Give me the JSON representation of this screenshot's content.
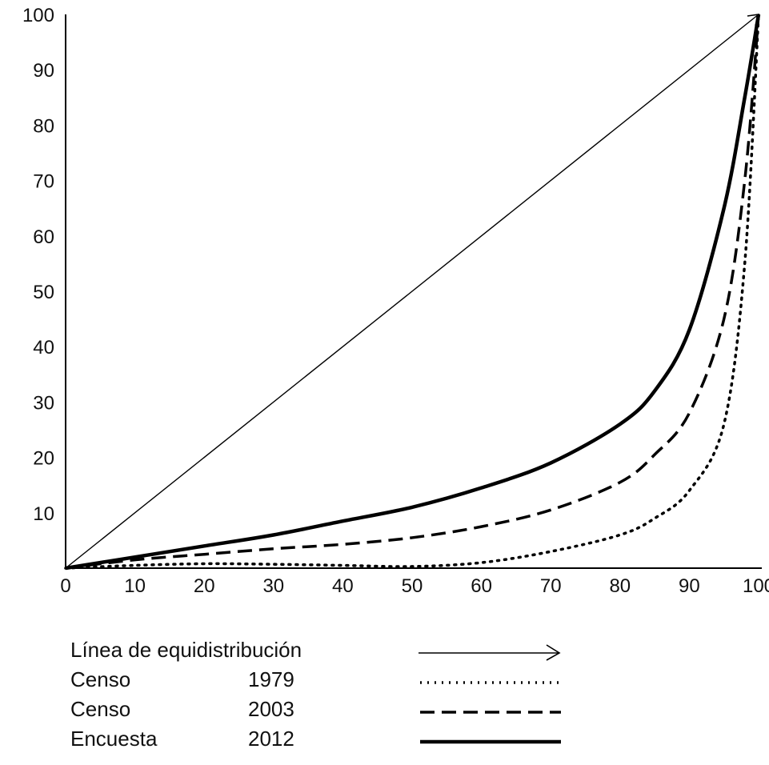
{
  "chart_data": {
    "type": "line",
    "title": "",
    "xlabel": "",
    "ylabel": "",
    "xlim": [
      0,
      100
    ],
    "ylim": [
      0,
      100
    ],
    "x_ticks": [
      "0",
      "10",
      "20",
      "30",
      "40",
      "50",
      "60",
      "70",
      "80",
      "90",
      "100"
    ],
    "y_ticks": [
      "10",
      "20",
      "30",
      "40",
      "50",
      "60",
      "70",
      "80",
      "90",
      "100"
    ],
    "grid": false,
    "legend_position": "bottom",
    "series": [
      {
        "name": "Línea de equidistribución",
        "label": "",
        "style": "thin-solid-arrow",
        "color": "#000000",
        "x": [
          0,
          100
        ],
        "y": [
          0,
          100
        ]
      },
      {
        "name": "Censo",
        "label": "1979",
        "style": "dotted",
        "color": "#000000",
        "x": [
          0,
          10,
          20,
          30,
          40,
          50,
          60,
          70,
          80,
          85,
          90,
          95,
          98,
          100
        ],
        "y": [
          0,
          0.5,
          0.8,
          0.7,
          0.5,
          0.3,
          1,
          3,
          6,
          9,
          14,
          26,
          55,
          100
        ]
      },
      {
        "name": "Censo",
        "label": "2003",
        "style": "dashed",
        "color": "#000000",
        "x": [
          0,
          10,
          20,
          30,
          40,
          50,
          60,
          70,
          80,
          85,
          90,
          95,
          98,
          100
        ],
        "y": [
          0,
          1.5,
          2.5,
          3.5,
          4.3,
          5.5,
          7.5,
          10.5,
          15.5,
          20.5,
          28,
          45,
          70,
          100
        ]
      },
      {
        "name": "Encuesta",
        "label": "2012",
        "style": "solid",
        "color": "#000000",
        "x": [
          0,
          10,
          20,
          30,
          40,
          50,
          60,
          70,
          80,
          85,
          90,
          95,
          98,
          100
        ],
        "y": [
          0,
          2,
          4,
          6,
          8.5,
          11,
          14.5,
          19,
          26,
          32,
          43,
          65,
          85,
          100
        ]
      }
    ]
  }
}
